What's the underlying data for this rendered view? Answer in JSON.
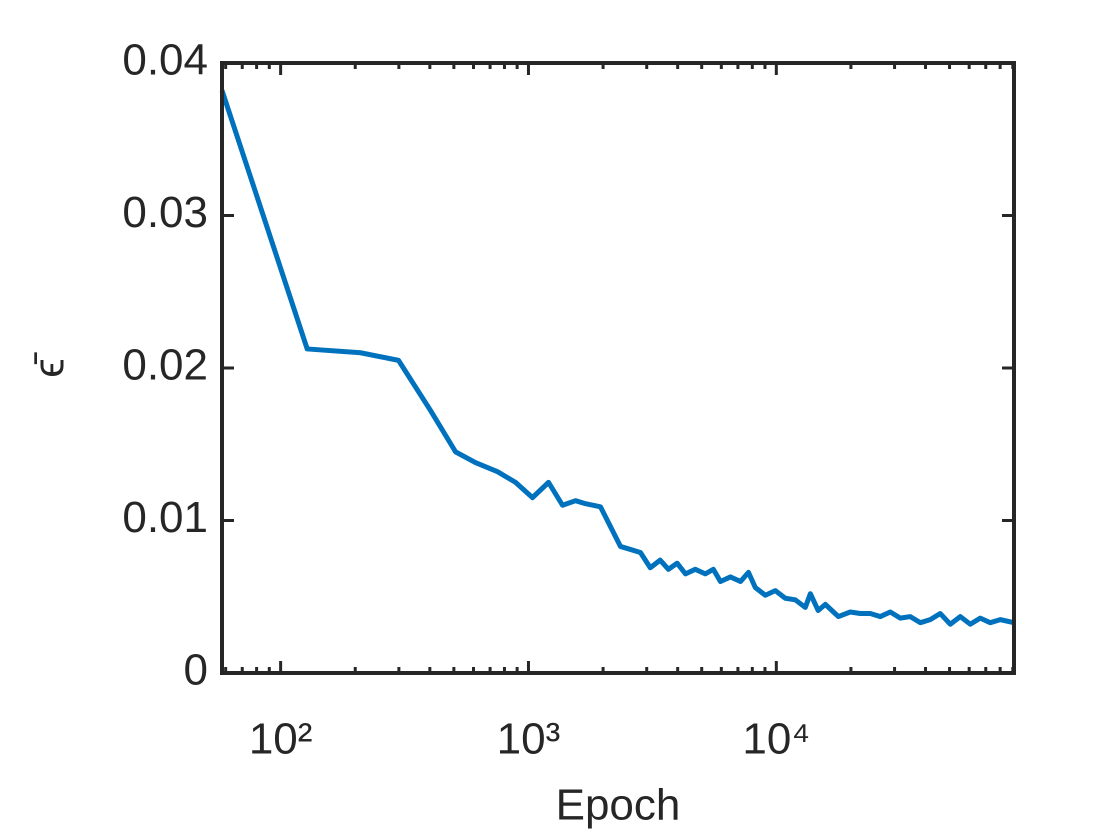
{
  "chart_data": {
    "type": "line",
    "x_label": "Epoch",
    "y_label": "ϵ̄",
    "x_scale": "log",
    "xlim": [
      58,
      91000
    ],
    "ylim": [
      0,
      0.04
    ],
    "xticks": [
      {
        "value": 100,
        "label": "10²"
      },
      {
        "value": 1000,
        "label": "10³"
      },
      {
        "value": 10000,
        "label": "10⁴"
      }
    ],
    "yticks": [
      0,
      0.01,
      0.02,
      0.03,
      0.04
    ],
    "grid": false,
    "series": [
      {
        "color": "#0072bd",
        "x": [
          58,
          128,
          210,
          299,
          403,
          508,
          611,
          750,
          887,
          1038,
          1205,
          1372,
          1549,
          1700,
          1952,
          2350,
          2830,
          3100,
          3400,
          3670,
          3980,
          4300,
          4710,
          5170,
          5570,
          5950,
          6530,
          7170,
          7720,
          8230,
          9030,
          9910,
          10870,
          11930,
          13090,
          13720,
          14750,
          15770,
          17800,
          19880,
          21830,
          23940,
          26270,
          28830,
          31640,
          34720,
          38100,
          41800,
          45870,
          50340,
          55240,
          60600,
          66500,
          72980,
          80100,
          91000
        ],
        "values": [
          0.0382,
          0.02125,
          0.021,
          0.0205,
          0.0172,
          0.0145,
          0.0138,
          0.0132,
          0.0125,
          0.0115,
          0.0125,
          0.011,
          0.0113,
          0.0111,
          0.0109,
          0.0083,
          0.0079,
          0.0069,
          0.0074,
          0.0068,
          0.0072,
          0.0065,
          0.0068,
          0.0065,
          0.0068,
          0.006,
          0.0063,
          0.006,
          0.0066,
          0.0056,
          0.0051,
          0.0054,
          0.0049,
          0.0048,
          0.0043,
          0.0052,
          0.0041,
          0.0045,
          0.0037,
          0.004,
          0.0039,
          0.0039,
          0.0037,
          0.004,
          0.0036,
          0.0037,
          0.0033,
          0.0035,
          0.0039,
          0.0032,
          0.0037,
          0.0032,
          0.0036,
          0.0033,
          0.0035,
          0.0033
        ]
      }
    ]
  }
}
